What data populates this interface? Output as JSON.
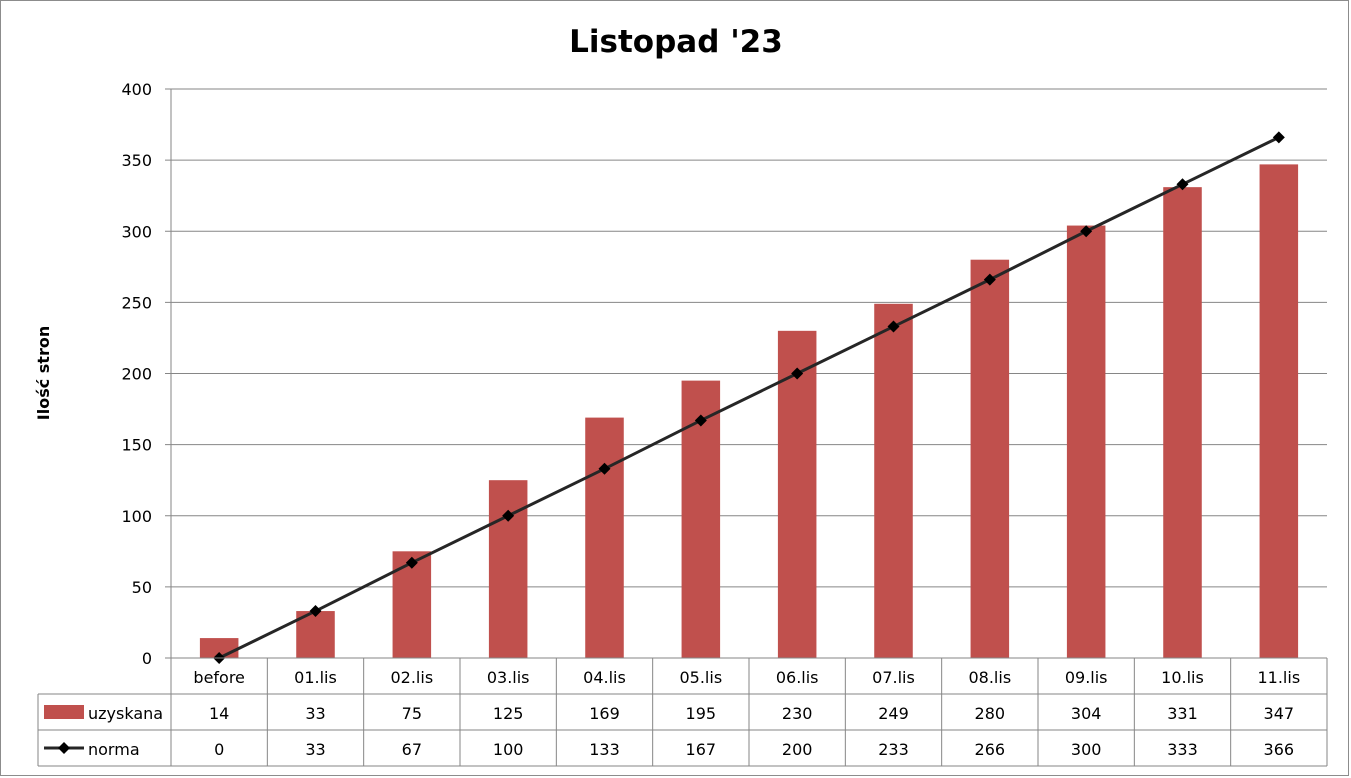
{
  "chart_data": {
    "type": "bar",
    "title": "Listopad '23",
    "xlabel": "",
    "ylabel": "Ilość stron",
    "ylim": [
      0,
      400
    ],
    "yticks": [
      0,
      50,
      100,
      150,
      200,
      250,
      300,
      350,
      400
    ],
    "grid": true,
    "legend": "data-table",
    "categories": [
      "before",
      "01.lis",
      "02.lis",
      "03.lis",
      "04.lis",
      "05.lis",
      "06.lis",
      "07.lis",
      "08.lis",
      "09.lis",
      "10.lis",
      "11.lis"
    ],
    "series": [
      {
        "name": "uzyskana",
        "type": "bar",
        "color": "#c0504d",
        "values": [
          14,
          33,
          75,
          125,
          169,
          195,
          230,
          249,
          280,
          304,
          331,
          347
        ]
      },
      {
        "name": "norma",
        "type": "line",
        "color": "#000000",
        "line_color": "#262626",
        "marker": "diamond",
        "values": [
          0,
          33,
          67,
          100,
          133,
          167,
          200,
          233,
          266,
          300,
          333,
          366
        ]
      }
    ]
  }
}
